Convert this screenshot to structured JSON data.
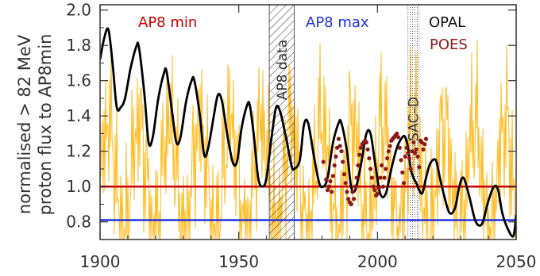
{
  "chart_data": {
    "type": "line",
    "ylabel_lines": [
      "normalised > 82 MeV",
      "proton flux to AP8min"
    ],
    "xlim": [
      1900,
      2050
    ],
    "ylim": [
      0.7,
      2.03
    ],
    "x_ticks": [
      1900,
      1950,
      2000,
      2050
    ],
    "y_ticks": [
      0.8,
      1.0,
      1.2,
      1.4,
      1.6,
      1.8,
      2.0
    ],
    "x_tick_labels": [
      "1900",
      "1950",
      "2000",
      "2050"
    ],
    "y_tick_labels": [
      "0.8",
      "1.0",
      "1.2",
      "1.4",
      "1.6",
      "1.8",
      "2.0"
    ],
    "grid": false,
    "legend_labels": {
      "ap8min": "AP8 min",
      "ap8max": "AP8 max",
      "opal": "OPAL",
      "poes": "POES"
    },
    "regions": {
      "ap8_data": {
        "label": "AP8 data",
        "x_range": [
          1961,
          1970
        ]
      },
      "sac_d": {
        "label": "SAC–D",
        "x_range": [
          2011,
          2015
        ]
      }
    },
    "series": [
      {
        "key": "ap8min",
        "color": "#cc0000",
        "type": "hline",
        "y": 1.0
      },
      {
        "key": "ap8max",
        "color": "#2233dd",
        "type": "hline",
        "y": 0.81
      },
      {
        "key": "opal",
        "color": "#000000",
        "type": "line",
        "x": [
          1900,
          1901.5,
          1903,
          1904.5,
          1906,
          1907.5,
          1909,
          1911,
          1913,
          1914,
          1916,
          1917.5,
          1919,
          1921,
          1923,
          1924,
          1926,
          1927.5,
          1929,
          1931,
          1933,
          1934,
          1936,
          1937.5,
          1939,
          1941,
          1942.5,
          1944,
          1946,
          1948,
          1949.5,
          1951,
          1953,
          1954,
          1955.5,
          1957,
          1958.5,
          1960,
          1962,
          1963.5,
          1965,
          1967,
          1969,
          1970,
          1972,
          1973.5,
          1975,
          1977,
          1979,
          1980.5,
          1982,
          1984,
          1986,
          1987,
          1989,
          1990.5,
          1992,
          1994,
          1996,
          1997.5,
          1999,
          2001,
          2003,
          2005,
          2007,
          2009,
          2010,
          2011,
          2012,
          2013,
          2014,
          2016,
          2017.5,
          2019,
          2021,
          2022.5,
          2024,
          2026,
          2028,
          2029.5,
          2031,
          2033,
          2035,
          2036.5,
          2038,
          2040,
          2042,
          2043.5,
          2045,
          2047,
          2049,
          2050
        ],
        "y": [
          1.72,
          1.84,
          1.89,
          1.7,
          1.45,
          1.45,
          1.5,
          1.67,
          1.79,
          1.79,
          1.52,
          1.25,
          1.28,
          1.5,
          1.64,
          1.65,
          1.42,
          1.25,
          1.28,
          1.48,
          1.6,
          1.6,
          1.4,
          1.18,
          1.22,
          1.4,
          1.52,
          1.48,
          1.28,
          1.13,
          1.15,
          1.33,
          1.46,
          1.46,
          1.28,
          1.05,
          1.0,
          1.05,
          1.3,
          1.45,
          1.42,
          1.28,
          1.12,
          1.1,
          1.15,
          1.35,
          1.36,
          1.18,
          1.02,
          1.0,
          1.05,
          1.25,
          1.36,
          1.36,
          1.2,
          1.0,
          0.98,
          1.12,
          1.3,
          1.3,
          1.15,
          0.96,
          0.96,
          1.1,
          1.22,
          1.28,
          1.28,
          1.22,
          1.1,
          1.05,
          1.02,
          0.96,
          1.05,
          1.13,
          1.15,
          1.05,
          0.95,
          0.85,
          0.88,
          1.0,
          1.05,
          0.95,
          0.82,
          0.78,
          0.8,
          0.92,
          1.0,
          0.98,
          0.85,
          0.76,
          0.72,
          0.84
        ]
      },
      {
        "key": "poes",
        "color": "#8b1a1a",
        "type": "scatter",
        "x": [
          1980.5,
          1981.5,
          1982,
          1982.5,
          1983,
          1983.5,
          1984,
          1984.5,
          1985,
          1985.5,
          1986,
          1986.5,
          1987,
          1987.5,
          1988,
          1988.5,
          1989,
          1989.5,
          1990,
          1990.5,
          1991,
          1991.5,
          1992,
          1992.5,
          1993,
          1993.5,
          1994,
          1994.5,
          1995,
          1995.5,
          1996,
          1996.5,
          1997,
          1997.5,
          1998,
          1998.5,
          1999,
          1999.5,
          2000,
          2000.5,
          2001,
          2001.5,
          2002,
          2002.5,
          2003,
          2003.5,
          2004,
          2004.5,
          2005,
          2005.5,
          2006,
          2006.5,
          2007,
          2007.5,
          2008,
          2008.5,
          2009,
          2009.5,
          2010,
          2010.5,
          2011,
          2011.5,
          2012,
          2012.5,
          2013,
          2013.5,
          2014,
          2014.5,
          2015,
          2015.5,
          2016,
          2016.5,
          2017,
          2017.5
        ],
        "y": [
          1.14,
          1.04,
          0.98,
          1.0,
          1.03,
          0.97,
          1.06,
          1.12,
          1.17,
          1.22,
          1.27,
          1.23,
          1.2,
          1.14,
          1.07,
          1.02,
          0.97,
          0.93,
          0.91,
          0.9,
          0.97,
          0.93,
          1.0,
          1.05,
          1.12,
          1.18,
          1.22,
          1.24,
          1.25,
          1.26,
          1.25,
          1.21,
          1.16,
          1.1,
          1.05,
          1.0,
          0.98,
          0.95,
          0.96,
          0.99,
          1.05,
          1.12,
          1.0,
          1.05,
          1.1,
          1.16,
          1.2,
          1.23,
          1.26,
          1.27,
          1.28,
          1.29,
          1.3,
          1.28,
          1.22,
          1.15,
          1.08,
          1.02,
          1.17,
          1.22,
          1.19,
          1.16,
          1.1,
          1.2,
          1.25,
          1.19,
          1.21,
          1.17,
          1.11,
          1.26,
          1.25,
          1.21,
          1.24,
          1.27
        ]
      },
      {
        "key": "forcing",
        "color": "#ffbb22",
        "type": "line",
        "note_dense": true
      }
    ]
  }
}
